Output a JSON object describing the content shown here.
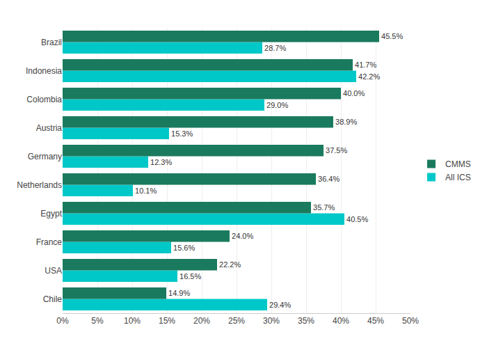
{
  "chart_data": {
    "type": "bar",
    "orientation": "horizontal",
    "categories": [
      "Chile",
      "USA",
      "France",
      "Egypt",
      "Netherlands",
      "Germany",
      "Austria",
      "Colombia",
      "Indonesia",
      "Brazil"
    ],
    "series": [
      {
        "name": "CMMS",
        "color": "#1a7a5e",
        "values": [
          14.9,
          22.2,
          24.0,
          35.7,
          36.4,
          37.5,
          38.9,
          40.0,
          41.7,
          45.5
        ],
        "value_labels": [
          "14.9%",
          "22.2%",
          "24.0%",
          "35.7%",
          "36.4%",
          "37.5%",
          "38.9%",
          "40.0%",
          "41.7%",
          "45.5%"
        ]
      },
      {
        "name": "All ICS",
        "color": "#00c8c8",
        "values": [
          29.4,
          16.5,
          15.6,
          40.5,
          10.1,
          12.3,
          15.3,
          29.0,
          42.2,
          28.7
        ],
        "value_labels": [
          "29.4%",
          "16.5%",
          "15.6%",
          "40.5%",
          "10.1%",
          "12.3%",
          "15.3%",
          "29.0%",
          "42.2%",
          "28.7%"
        ]
      }
    ],
    "xlim": [
      0,
      50
    ],
    "xticks": [
      {
        "value": 0,
        "label": "0%"
      },
      {
        "value": 5,
        "label": "5%"
      },
      {
        "value": 10,
        "label": "10%"
      },
      {
        "value": 15,
        "label": "15%"
      },
      {
        "value": 20,
        "label": "20%"
      },
      {
        "value": 25,
        "label": "25%"
      },
      {
        "value": 30,
        "label": "30%"
      },
      {
        "value": 35,
        "label": "35%"
      },
      {
        "value": 40,
        "label": "40%"
      },
      {
        "value": 45,
        "label": "45%"
      },
      {
        "value": 50,
        "label": "50%"
      }
    ],
    "grid": true,
    "legend": "right",
    "data_labels": true
  }
}
